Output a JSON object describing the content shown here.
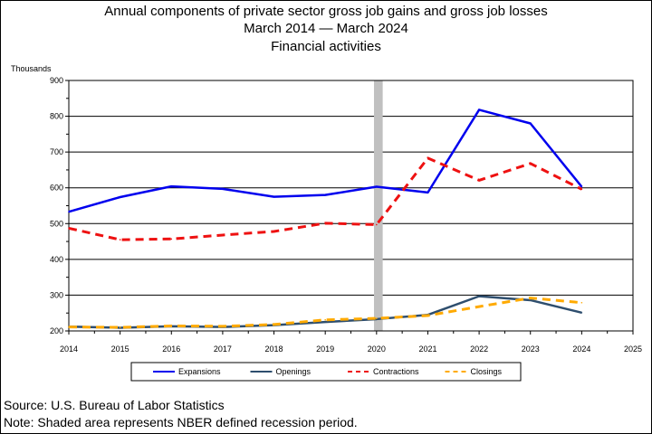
{
  "title_lines": [
    "Annual components of private sector gross job gains and gross job losses",
    "March 2014 — March 2024",
    "Financial activities"
  ],
  "y_unit": "Thousands",
  "footer": {
    "source": "Source: U.S. Bureau of Labor Statistics",
    "note": "Note: Shaded area represents NBER defined recession period."
  },
  "chart_data": {
    "type": "line",
    "x": [
      2014,
      2015,
      2016,
      2017,
      2018,
      2019,
      2020,
      2021,
      2022,
      2023,
      2024
    ],
    "xticks": [
      2014,
      2015,
      2016,
      2017,
      2018,
      2019,
      2020,
      2021,
      2022,
      2023,
      2024,
      2025
    ],
    "xlim": [
      2014,
      2025
    ],
    "ylim": [
      200,
      900
    ],
    "yticks": [
      200,
      300,
      400,
      500,
      600,
      700,
      800,
      900
    ],
    "grid": true,
    "legend_position": "bottom",
    "recession": {
      "start": 2019.95,
      "end": 2020.12,
      "color": "#c0c0c0"
    },
    "series": [
      {
        "name": "Expansions",
        "color": "#0000ee",
        "dash": "solid",
        "values": [
          533,
          574,
          604,
          597,
          575,
          580,
          603,
          587,
          818,
          780,
          603
        ]
      },
      {
        "name": "Openings",
        "color": "#2e4e6e",
        "dash": "solid",
        "values": [
          212,
          209,
          213,
          211,
          216,
          225,
          233,
          245,
          297,
          286,
          251
        ]
      },
      {
        "name": "Contractions",
        "color": "#ee1111",
        "dash": "dashed",
        "values": [
          487,
          455,
          457,
          468,
          478,
          501,
          497,
          683,
          621,
          668,
          596
        ]
      },
      {
        "name": "Closings",
        "color": "#ffaa00",
        "dash": "dashed",
        "values": [
          211,
          210,
          214,
          213,
          218,
          231,
          235,
          243,
          268,
          292,
          279
        ]
      }
    ]
  }
}
